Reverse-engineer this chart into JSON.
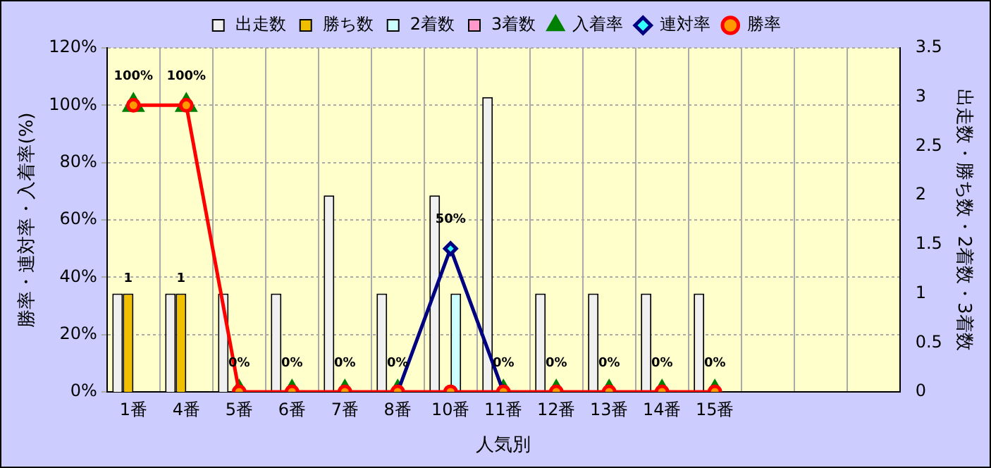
{
  "chart_data": {
    "type": "bar",
    "xlabel": "人気別",
    "ylabel": "勝率・連対率・入着率(%)",
    "y2label": "出走数・勝ち数・2着数・3着数",
    "categories": [
      "1番",
      "4番",
      "5番",
      "6番",
      "7番",
      "8番",
      "10番",
      "11番",
      "12番",
      "13番",
      "14番",
      "15番",
      null,
      null,
      null
    ],
    "series": [
      {
        "name": "出走数",
        "axis": "y2",
        "color": "#f0f0f0",
        "values": [
          1,
          1,
          1,
          1,
          2,
          1,
          2,
          3,
          1,
          1,
          1,
          1,
          null,
          null,
          null
        ]
      },
      {
        "name": "勝ち数",
        "axis": "y2",
        "color": "#f0c000",
        "values": [
          1,
          1,
          0,
          0,
          0,
          0,
          0,
          0,
          0,
          0,
          0,
          0,
          null,
          null,
          null
        ],
        "value_labels": [
          "1",
          "1",
          null,
          null,
          null,
          null,
          null,
          null,
          null,
          null,
          null,
          null,
          null,
          null,
          null
        ]
      },
      {
        "name": "2着数",
        "axis": "y2",
        "color": "#ccffff",
        "values": [
          0,
          0,
          0,
          0,
          0,
          0,
          1,
          0,
          0,
          0,
          0,
          0,
          null,
          null,
          null
        ]
      },
      {
        "name": "3着数",
        "axis": "y2",
        "color": "#ff99cc",
        "values": [
          0,
          0,
          0,
          0,
          0,
          0,
          0,
          0,
          0,
          0,
          0,
          0,
          null,
          null,
          null
        ]
      },
      {
        "name": "入着率",
        "type": "scatter",
        "color": "#008000",
        "marker": "triangle",
        "values": [
          100,
          100,
          0,
          0,
          0,
          0,
          null,
          0,
          0,
          0,
          0,
          0,
          null,
          null,
          null
        ],
        "value_labels": [
          "100%",
          "100%",
          "0%",
          "0%",
          "0%",
          "0%",
          null,
          "0%",
          "0%",
          "0%",
          "0%",
          "0%",
          null,
          null,
          null
        ]
      },
      {
        "name": "連対率",
        "type": "line",
        "color": "#000080",
        "marker": "diamond",
        "values": [
          null,
          null,
          null,
          null,
          null,
          0,
          50,
          0,
          null,
          null,
          null,
          null,
          null,
          null,
          null
        ],
        "value_labels": [
          null,
          null,
          null,
          null,
          null,
          null,
          "50%",
          null,
          null,
          null,
          null,
          null,
          null,
          null,
          null
        ]
      },
      {
        "name": "勝率",
        "type": "line",
        "color": "#ff0000",
        "marker": "circle",
        "values": [
          100,
          100,
          0,
          0,
          0,
          0,
          0,
          0,
          0,
          0,
          0,
          0,
          null,
          null,
          null
        ]
      }
    ],
    "ylim": [
      0,
      120
    ],
    "yticks": [
      {
        "value": 0,
        "label": "0%"
      },
      {
        "value": 20,
        "label": "20%"
      },
      {
        "value": 40,
        "label": "40%"
      },
      {
        "value": 60,
        "label": "60%"
      },
      {
        "value": 80,
        "label": "80%"
      },
      {
        "value": 100,
        "label": "100%"
      },
      {
        "value": 120,
        "label": "120%"
      }
    ],
    "y2lim": [
      0,
      3.5
    ],
    "y2ticks": [
      0,
      0.5,
      1,
      1.5,
      2,
      2.5,
      3,
      3.5
    ],
    "grid": true,
    "legend": "top",
    "line_style": "solid"
  }
}
